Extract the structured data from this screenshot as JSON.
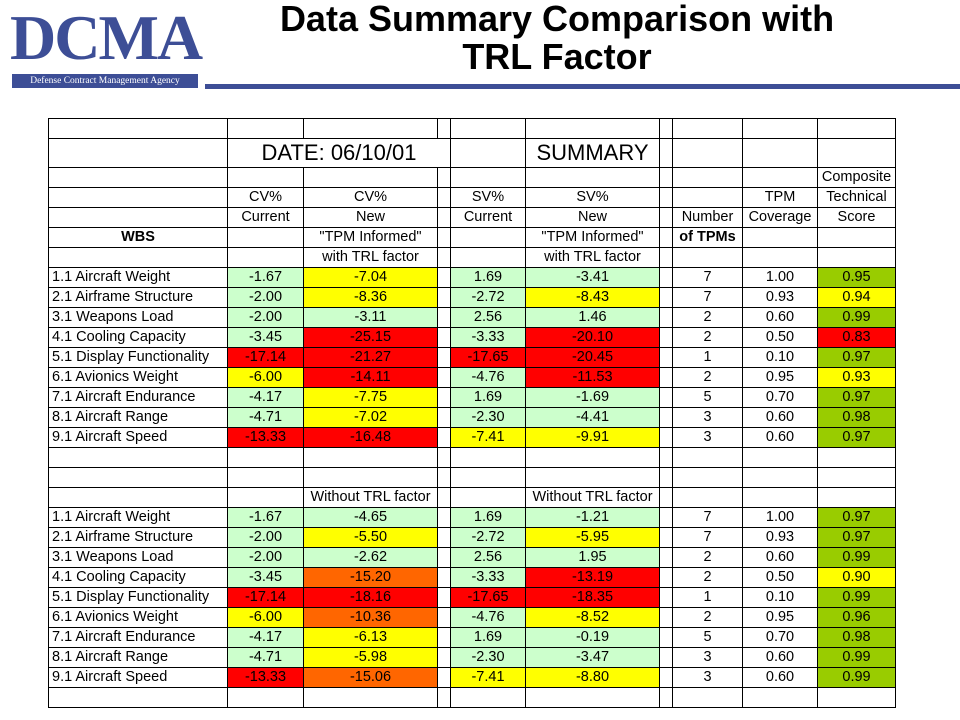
{
  "header": {
    "logo_text": "DCMA",
    "logo_subtitle": "Defense Contract Management Agency",
    "title_line1": "Data Summary Comparison with",
    "title_line2": "TRL Factor"
  },
  "table": {
    "date_label": "DATE:  06/10/01",
    "summary_label": "SUMMARY",
    "composite": "Composite",
    "technical": "Technical",
    "score": "Score",
    "cv_pct": "CV%",
    "sv_pct": "SV%",
    "current": "Current",
    "new": "New",
    "tpm": "TPM",
    "coverage": "Coverage",
    "number": "Number",
    "of_tpms": "of TPMs",
    "wbs": "WBS",
    "tpm_informed": "\"TPM Informed\"",
    "with_trl": "with TRL factor",
    "without_trl": "Without TRL factor",
    "colors": {
      "g": "#ccffcc",
      "y": "#ffff00",
      "r": "#ff0000",
      "o": "#ff6600",
      "gd": "#99cc00"
    },
    "with_rows": [
      {
        "wbs": "1.1 Aircraft Weight",
        "cv_cur": "-1.67",
        "cv_new": "-7.04",
        "sv_cur": "1.69",
        "sv_new": "-3.41",
        "n": "7",
        "cov": "1.00",
        "score": "0.95"
      },
      {
        "wbs": "2.1 Airframe Structure",
        "cv_cur": "-2.00",
        "cv_new": "-8.36",
        "sv_cur": "-2.72",
        "sv_new": "-8.43",
        "n": "7",
        "cov": "0.93",
        "score": "0.94"
      },
      {
        "wbs": "3.1 Weapons Load",
        "cv_cur": "-2.00",
        "cv_new": "-3.11",
        "sv_cur": "2.56",
        "sv_new": "1.46",
        "n": "2",
        "cov": "0.60",
        "score": "0.99"
      },
      {
        "wbs": "4.1 Cooling Capacity",
        "cv_cur": "-3.45",
        "cv_new": "-25.15",
        "sv_cur": "-3.33",
        "sv_new": "-20.10",
        "n": "2",
        "cov": "0.50",
        "score": "0.83"
      },
      {
        "wbs": "5.1 Display Functionality",
        "cv_cur": "-17.14",
        "cv_new": "-21.27",
        "sv_cur": "-17.65",
        "sv_new": "-20.45",
        "n": "1",
        "cov": "0.10",
        "score": "0.97"
      },
      {
        "wbs": "6.1 Avionics Weight",
        "cv_cur": "-6.00",
        "cv_new": "-14.11",
        "sv_cur": "-4.76",
        "sv_new": "-11.53",
        "n": "2",
        "cov": "0.95",
        "score": "0.93"
      },
      {
        "wbs": "7.1 Aircraft Endurance",
        "cv_cur": "-4.17",
        "cv_new": "-7.75",
        "sv_cur": "1.69",
        "sv_new": "-1.69",
        "n": "5",
        "cov": "0.70",
        "score": "0.97"
      },
      {
        "wbs": "8.1 Aircraft Range",
        "cv_cur": "-4.71",
        "cv_new": "-7.02",
        "sv_cur": "-2.30",
        "sv_new": "-4.41",
        "n": "3",
        "cov": "0.60",
        "score": "0.98"
      },
      {
        "wbs": "9.1 Aircraft Speed",
        "cv_cur": "-13.33",
        "cv_new": "-16.48",
        "sv_cur": "-7.41",
        "sv_new": "-9.91",
        "n": "3",
        "cov": "0.60",
        "score": "0.97"
      }
    ],
    "without_rows": [
      {
        "wbs": "1.1 Aircraft Weight",
        "cv_cur": "-1.67",
        "cv_new": "-4.65",
        "sv_cur": "1.69",
        "sv_new": "-1.21",
        "n": "7",
        "cov": "1.00",
        "score": "0.97"
      },
      {
        "wbs": "2.1 Airframe Structure",
        "cv_cur": "-2.00",
        "cv_new": "-5.50",
        "sv_cur": "-2.72",
        "sv_new": "-5.95",
        "n": "7",
        "cov": "0.93",
        "score": "0.97"
      },
      {
        "wbs": "3.1 Weapons Load",
        "cv_cur": "-2.00",
        "cv_new": "-2.62",
        "sv_cur": "2.56",
        "sv_new": "1.95",
        "n": "2",
        "cov": "0.60",
        "score": "0.99"
      },
      {
        "wbs": "4.1 Cooling Capacity",
        "cv_cur": "-3.45",
        "cv_new": "-15.20",
        "sv_cur": "-3.33",
        "sv_new": "-13.19",
        "n": "2",
        "cov": "0.50",
        "score": "0.90"
      },
      {
        "wbs": "5.1 Display Functionality",
        "cv_cur": "-17.14",
        "cv_new": "-18.16",
        "sv_cur": "-17.65",
        "sv_new": "-18.35",
        "n": "1",
        "cov": "0.10",
        "score": "0.99"
      },
      {
        "wbs": "6.1 Avionics Weight",
        "cv_cur": "-6.00",
        "cv_new": "-10.36",
        "sv_cur": "-4.76",
        "sv_new": "-8.52",
        "n": "2",
        "cov": "0.95",
        "score": "0.96"
      },
      {
        "wbs": "7.1 Aircraft Endurance",
        "cv_cur": "-4.17",
        "cv_new": "-6.13",
        "sv_cur": "1.69",
        "sv_new": "-0.19",
        "n": "5",
        "cov": "0.70",
        "score": "0.98"
      },
      {
        "wbs": "8.1 Aircraft Range",
        "cv_cur": "-4.71",
        "cv_new": "-5.98",
        "sv_cur": "-2.30",
        "sv_new": "-3.47",
        "n": "3",
        "cov": "0.60",
        "score": "0.99"
      },
      {
        "wbs": "9.1 Aircraft Speed",
        "cv_cur": "-13.33",
        "cv_new": "-15.06",
        "sv_cur": "-7.41",
        "sv_new": "-8.80",
        "n": "3",
        "cov": "0.60",
        "score": "0.99"
      }
    ]
  }
}
